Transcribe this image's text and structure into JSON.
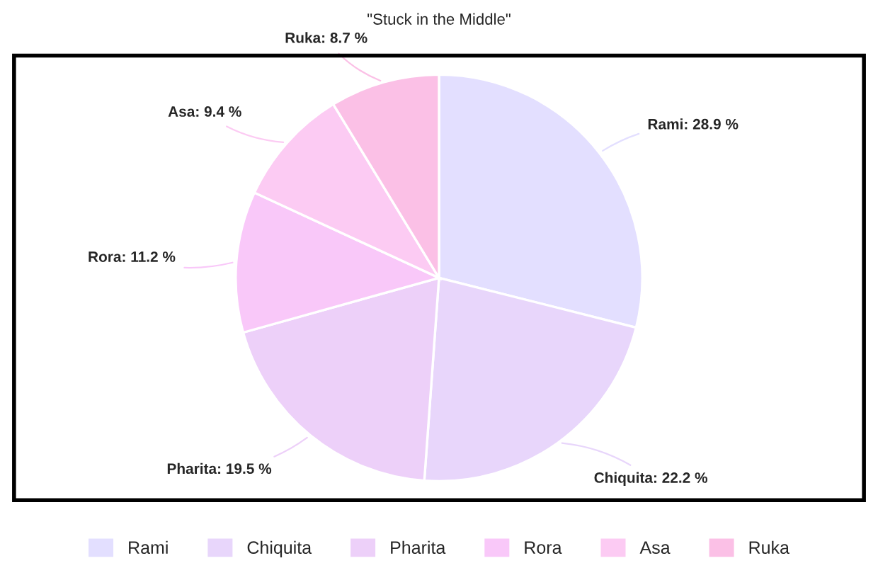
{
  "chart_data": {
    "type": "pie",
    "title": "\"Stuck in the Middle\"",
    "categories": [
      "Rami",
      "Chiquita",
      "Pharita",
      "Rora",
      "Asa",
      "Ruka"
    ],
    "values": [
      28.9,
      22.2,
      19.5,
      11.2,
      9.4,
      8.7
    ],
    "value_labels": [
      "Rami: 28.9 %",
      "Chiquita: 22.2 %",
      "Pharita: 19.5 %",
      "Rora: 11.2 %",
      "Asa: 9.4 %",
      "Ruka: 8.7 %"
    ],
    "colors": [
      "#e3dfff",
      "#e8d6fb",
      "#edd0f9",
      "#f9c8f9",
      "#fccbf3",
      "#fbc0e6"
    ],
    "legend": "bottom"
  }
}
